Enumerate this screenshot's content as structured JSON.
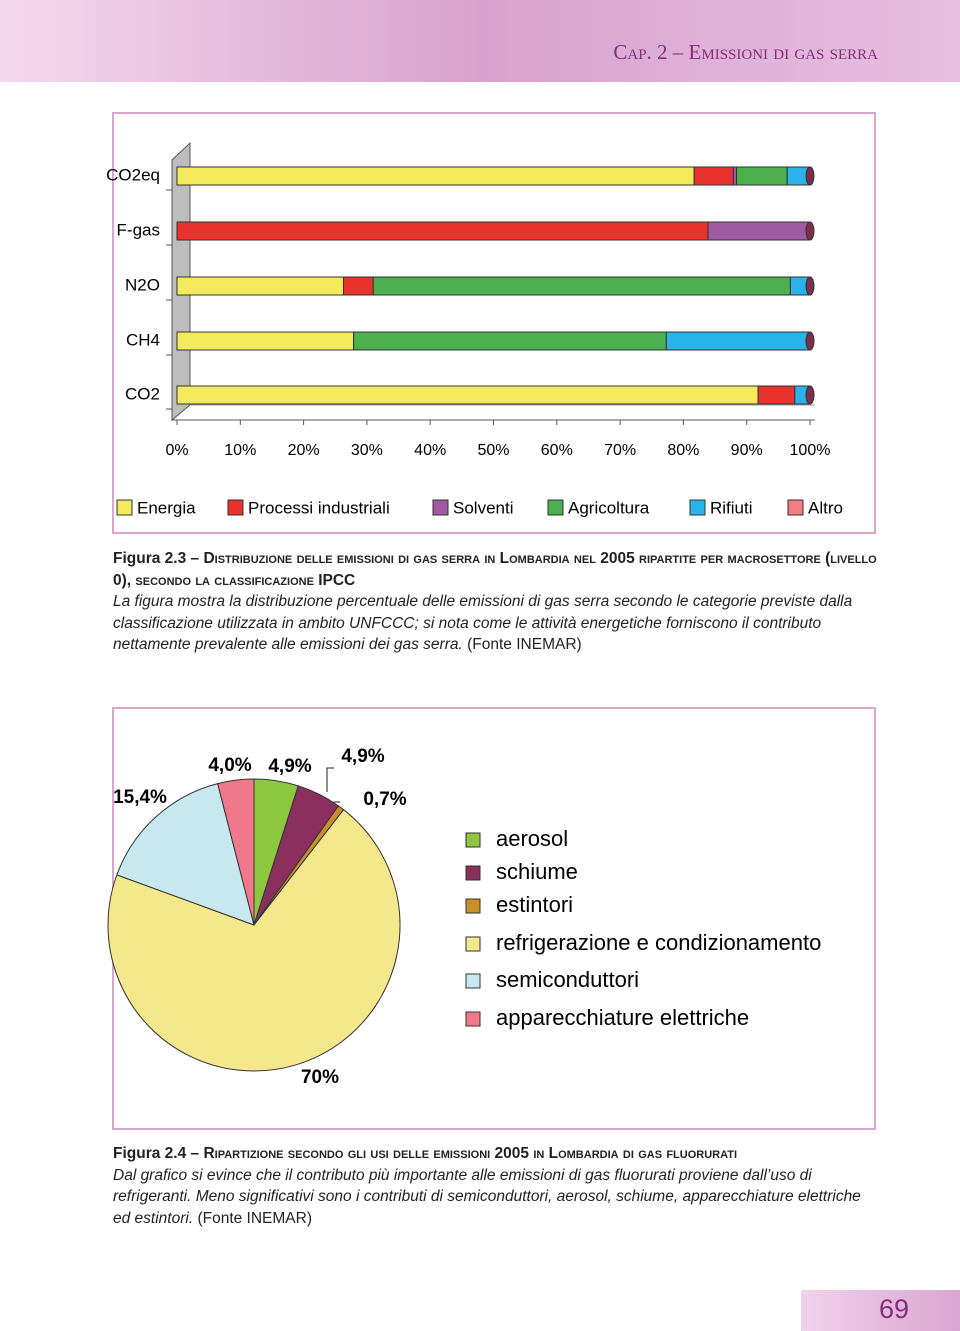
{
  "header": {
    "title": "Cap. 2 – Emissioni di gas serra"
  },
  "chart_data": [
    {
      "type": "bar",
      "orientation": "horizontal",
      "stacked": true,
      "categories": [
        "CO2eq",
        "F-gas",
        "N2O",
        "CH4",
        "CO2"
      ],
      "series": [
        {
          "name": "Energia",
          "color": "#f3eb5c",
          "values": [
            81.7,
            0,
            26.3,
            27.9,
            91.8
          ]
        },
        {
          "name": "Processi industriali",
          "color": "#e8322e",
          "values": [
            6.2,
            83.9,
            4.7,
            0,
            5.8
          ]
        },
        {
          "name": "Solventi",
          "color": "#a05aa4",
          "values": [
            0.5,
            16.1,
            0,
            0,
            0
          ]
        },
        {
          "name": "Agricoltura",
          "color": "#4caf50",
          "values": [
            8.0,
            0,
            65.9,
            49.4,
            0
          ]
        },
        {
          "name": "Rifiuti",
          "color": "#29b3e8",
          "values": [
            3.6,
            0,
            3.1,
            22.7,
            2.4
          ]
        },
        {
          "name": "Altro",
          "color": "#f08080",
          "values": [
            0,
            0,
            0,
            0,
            0
          ]
        }
      ],
      "xlim": [
        0,
        100
      ],
      "xticks": [
        {
          "value": 0,
          "label": "0%"
        },
        {
          "value": 10,
          "label": "10%"
        },
        {
          "value": 20,
          "label": "20%"
        },
        {
          "value": 30,
          "label": "30%"
        },
        {
          "value": 40,
          "label": "40%"
        },
        {
          "value": 50,
          "label": "50%"
        },
        {
          "value": 60,
          "label": "60%"
        },
        {
          "value": 70,
          "label": "70%"
        },
        {
          "value": 80,
          "label": "80%"
        },
        {
          "value": 90,
          "label": "90%"
        },
        {
          "value": 100,
          "label": "100%"
        }
      ],
      "legend": "bottom"
    },
    {
      "type": "pie",
      "categories": [
        "aerosol",
        "schiume",
        "estintori",
        "refrigerazione e condizionamento",
        "semiconduttori",
        "apparecchiature elettriche"
      ],
      "values": [
        4.9,
        4.9,
        0.7,
        70,
        15.4,
        4.0
      ],
      "value_labels": [
        "4,9%",
        "4,9%",
        "0,7%",
        "70%",
        "15,4%",
        "4,0%"
      ],
      "colors": [
        "#8dc63f",
        "#8b2f5f",
        "#c8902a",
        "#f5e88c",
        "#c8e8f0",
        "#f0788a"
      ],
      "legend": "right"
    }
  ],
  "captions": [
    {
      "label": "Figura 2.3",
      "title": "– Distribuzione delle emissioni di gas serra in Lombardia nel 2005 ripartite per macrosettore (livello 0), secondo la classificazione IPCC",
      "body": "La figura mostra la distribuzione percentuale delle emissioni di gas serra secondo le categorie previste dalla classificazione utilizzata in ambito UNFCCC; si nota come le attività energetiche forniscono il contributo nettamente prevalente alle emissioni dei gas serra.",
      "source": "(Fonte INEMAR)"
    },
    {
      "label": "Figura 2.4",
      "title": "– Ripartizione secondo gli usi delle emissioni 2005 in Lombardia di gas fluorurati",
      "body": "Dal grafico si evince che il contributo più importante alle emissioni di gas fluorurati proviene dall’uso di refrigeranti. Meno significativi sono i contributi di semiconduttori, aerosol, schiume, apparecchiature elettriche ed estintori.",
      "source": "(Fonte INEMAR)"
    }
  ],
  "page_number": "69"
}
